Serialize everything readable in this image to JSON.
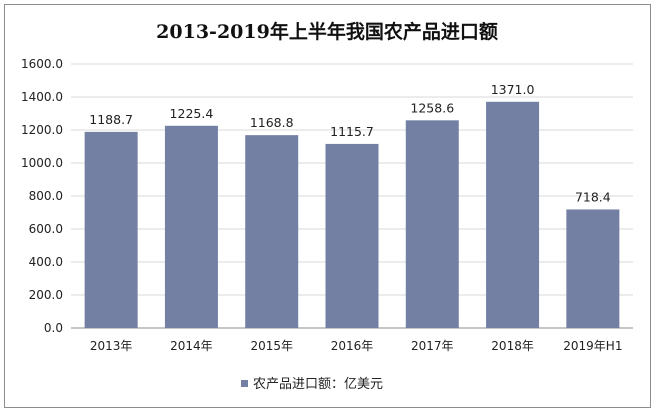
{
  "chart_data": {
    "type": "bar",
    "title": "2013-2019年上半年我国农产品进口额",
    "categories": [
      "2013年",
      "2014年",
      "2015年",
      "2016年",
      "2017年",
      "2018年",
      "2019年H1"
    ],
    "series": [
      {
        "name": "农产品进口额：亿美元",
        "values": [
          1188.7,
          1225.4,
          1168.8,
          1115.7,
          1258.6,
          1371.0,
          718.4
        ],
        "color": "#737fa3"
      }
    ],
    "data_labels": [
      "1188.7",
      "1225.4",
      "1168.8",
      "1115.7",
      "1258.6",
      "1371.0",
      "718.4"
    ],
    "ylim": [
      0,
      1600
    ],
    "yticks": [
      "0.0",
      "200.0",
      "400.0",
      "600.0",
      "800.0",
      "1000.0",
      "1200.0",
      "1400.0",
      "1600.0"
    ],
    "grid": true,
    "legend_position": "bottom-left"
  }
}
